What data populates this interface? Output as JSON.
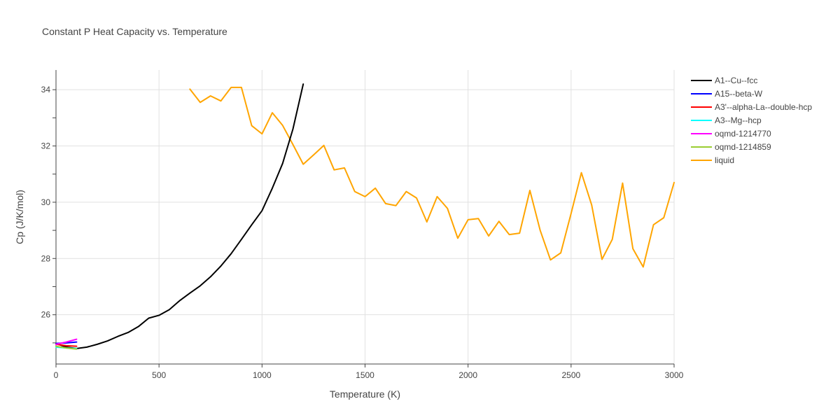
{
  "chart_data": {
    "type": "line",
    "title": "Constant P Heat Capacity vs. Temperature",
    "xlabel": "Temperature (K)",
    "ylabel": "Cp (J/K/mol)",
    "xlim": [
      0,
      3000
    ],
    "ylim": [
      24.25,
      34.7
    ],
    "xticks": [
      0,
      500,
      1000,
      1500,
      2000,
      2500,
      3000
    ],
    "xtick_labels": [
      "0",
      "500",
      "1000",
      "1500",
      "2000",
      "2500",
      "3000"
    ],
    "yticks": [
      26,
      28,
      30,
      32,
      34
    ],
    "ytick_labels": [
      "26",
      "28",
      "30",
      "32",
      "34"
    ],
    "grid": true,
    "legend_position": "right",
    "series": [
      {
        "name": "A1--Cu--fcc",
        "color": "#000000",
        "x": [
          0,
          50,
          100,
          150,
          200,
          250,
          300,
          350,
          400,
          450,
          500,
          550,
          600,
          650,
          700,
          750,
          800,
          850,
          900,
          950,
          1000,
          1050,
          1100,
          1150,
          1200
        ],
        "y": [
          24.98,
          24.85,
          24.8,
          24.85,
          24.95,
          25.07,
          25.23,
          25.37,
          25.58,
          25.88,
          25.98,
          26.18,
          26.5,
          26.77,
          27.03,
          27.35,
          27.73,
          28.17,
          28.68,
          29.2,
          29.7,
          30.5,
          31.38,
          32.6,
          34.2
        ]
      },
      {
        "name": "A15--beta-W",
        "color": "#0000ff",
        "x": [
          0,
          50,
          100
        ],
        "y": [
          24.98,
          25.0,
          25.03
        ]
      },
      {
        "name": "A3'--alpha-La--double-hcp",
        "color": "#ff0000",
        "x": [
          0,
          50,
          100
        ],
        "y": [
          24.95,
          24.9,
          24.88
        ]
      },
      {
        "name": "A3--Mg--hcp",
        "color": "#00ffff",
        "x": [
          0,
          50,
          100
        ],
        "y": [
          24.85,
          24.82,
          24.8
        ]
      },
      {
        "name": "oqmd-1214770",
        "color": "#ff00ff",
        "x": [
          0,
          50,
          100
        ],
        "y": [
          24.95,
          25.03,
          25.13
        ]
      },
      {
        "name": "oqmd-1214859",
        "color": "#9acd32",
        "x": [
          0,
          50,
          100
        ],
        "y": [
          24.88,
          24.82,
          24.78
        ]
      },
      {
        "name": "liquid",
        "color": "#ffa500",
        "x": [
          650,
          700,
          750,
          800,
          850,
          900,
          950,
          1000,
          1050,
          1100,
          1150,
          1200,
          1250,
          1300,
          1350,
          1400,
          1450,
          1500,
          1550,
          1600,
          1650,
          1700,
          1750,
          1800,
          1850,
          1900,
          1950,
          2000,
          2050,
          2100,
          2150,
          2200,
          2250,
          2300,
          2350,
          2400,
          2450,
          2500,
          2550,
          2600,
          2650,
          2700,
          2750,
          2800,
          2850,
          2900,
          2950,
          3000
        ],
        "y": [
          34.02,
          33.55,
          33.78,
          33.6,
          34.08,
          34.08,
          32.72,
          32.43,
          33.18,
          32.73,
          32.05,
          31.35,
          31.68,
          32.02,
          31.15,
          31.22,
          30.38,
          30.2,
          30.5,
          29.95,
          29.88,
          30.38,
          30.15,
          29.3,
          30.2,
          29.78,
          28.72,
          29.38,
          29.42,
          28.8,
          29.32,
          28.85,
          28.9,
          30.42,
          29.0,
          27.95,
          28.2,
          29.6,
          31.05,
          29.9,
          27.97,
          28.68,
          30.68,
          28.35,
          27.7,
          29.2,
          29.45,
          30.7
        ]
      }
    ]
  }
}
